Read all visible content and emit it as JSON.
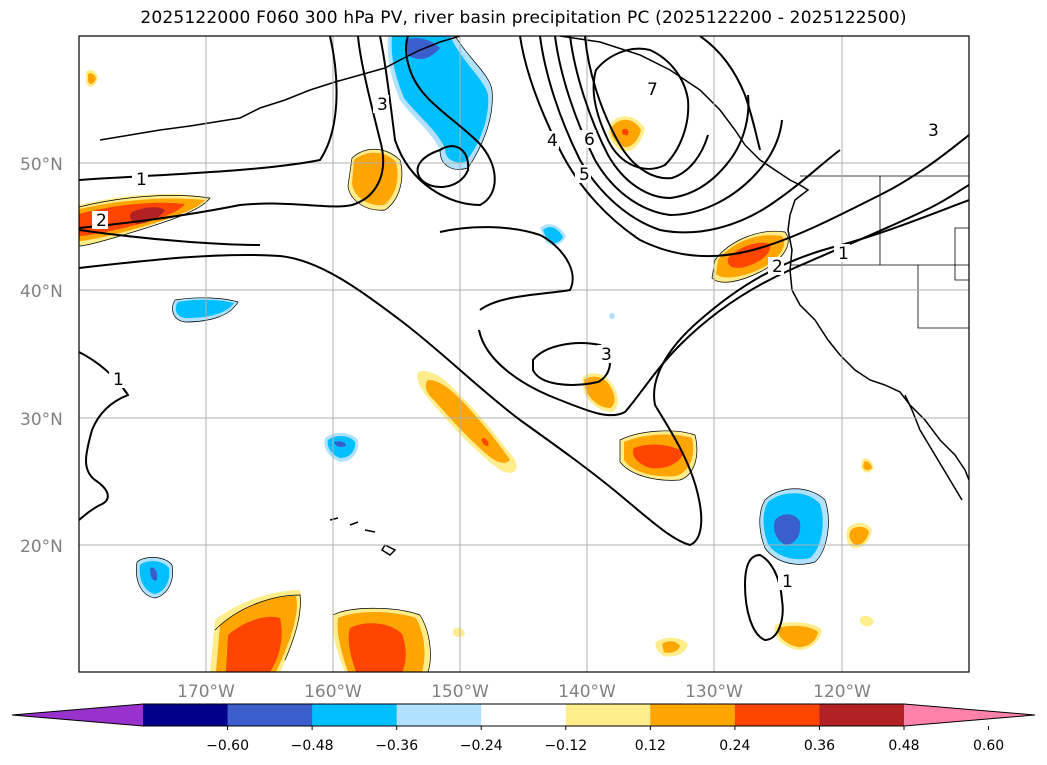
{
  "title": "2025122000 F060 300 hPa PV, river basin precipitation PC (2025122200 - 2025122500)",
  "map": {
    "lat_labels": [
      "50°N",
      "40°N",
      "30°N",
      "20°N"
    ],
    "lon_labels": [
      "170°W",
      "160°W",
      "150°W",
      "140°W",
      "130°W",
      "120°W"
    ],
    "pv_contour_labels": [
      "1",
      "2",
      "3",
      "4",
      "5",
      "6",
      "7",
      "3",
      "1",
      "3",
      "2",
      "1",
      "1"
    ]
  },
  "colorbar": {
    "ticks": [
      "−0.60",
      "−0.48",
      "−0.36",
      "−0.24",
      "−0.12",
      "0.12",
      "0.24",
      "0.36",
      "0.48",
      "0.60"
    ],
    "colors": [
      "#9932cc",
      "#00008b",
      "#3a5fcd",
      "#00bfff",
      "#b0e2ff",
      "#ffffff",
      "#ffec8b",
      "#ffa500",
      "#ff4500",
      "#b22222",
      "#ff82ab"
    ]
  },
  "colors": {
    "frame": "#000000",
    "grid": "#b0b0b0",
    "label": "#808080"
  }
}
